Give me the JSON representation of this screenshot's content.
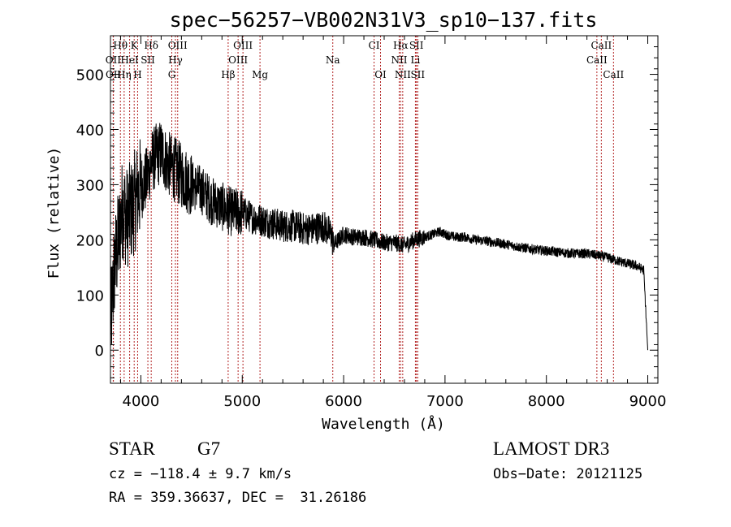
{
  "chart_data": {
    "type": "line",
    "title": "spec−56257−VB002N31V3_sp10−137.fits",
    "xlabel": "Wavelength (Å)",
    "ylabel": "Flux (relative)",
    "xlim": [
      3700,
      9100
    ],
    "ylim": [
      -60,
      570
    ],
    "x_ticks": [
      4000,
      5000,
      6000,
      7000,
      8000,
      9000
    ],
    "y_ticks": [
      0,
      100,
      200,
      300,
      400,
      500
    ],
    "spectrum_anchors": {
      "x": [
        3700,
        3740,
        3780,
        3820,
        3860,
        3900,
        3940,
        3980,
        4020,
        4060,
        4100,
        4140,
        4200,
        4260,
        4320,
        4380,
        4440,
        4500,
        4600,
        4700,
        4800,
        4900,
        5000,
        5100,
        5200,
        5300,
        5400,
        5500,
        5600,
        5700,
        5800,
        5880,
        5900,
        6000,
        6100,
        6200,
        6300,
        6400,
        6500,
        6560,
        6600,
        6700,
        6800,
        6880,
        6950,
        7000,
        7100,
        7200,
        7300,
        7400,
        7500,
        7600,
        7700,
        7800,
        7900,
        8000,
        8100,
        8200,
        8300,
        8400,
        8500,
        8600,
        8700,
        8800,
        8900,
        8960,
        9000
      ],
      "y": [
        40,
        150,
        200,
        260,
        240,
        250,
        270,
        290,
        300,
        310,
        340,
        350,
        360,
        340,
        330,
        320,
        310,
        300,
        290,
        270,
        260,
        250,
        250,
        240,
        235,
        230,
        225,
        225,
        220,
        220,
        225,
        210,
        190,
        210,
        205,
        205,
        200,
        195,
        195,
        192,
        190,
        200,
        205,
        210,
        215,
        210,
        205,
        205,
        200,
        198,
        195,
        192,
        188,
        185,
        182,
        180,
        178,
        176,
        175,
        175,
        172,
        168,
        162,
        157,
        152,
        145,
        0
      ]
    },
    "lines": [
      {
        "label": "Hθ",
        "x": 3798,
        "row": 0
      },
      {
        "label": "K",
        "x": 3934,
        "row": 0
      },
      {
        "label": "Hδ",
        "x": 4102,
        "row": 0
      },
      {
        "label": "OIII",
        "x": 4363,
        "row": 0
      },
      {
        "label": "OIII",
        "x": 5007,
        "row": 0
      },
      {
        "label": "CI",
        "x": 6300,
        "row": 0
      },
      {
        "label": "Hα",
        "x": 6563,
        "row": 0
      },
      {
        "label": "SII",
        "x": 6718,
        "row": 0
      },
      {
        "label": "CaII",
        "x": 8542,
        "row": 0
      },
      {
        "label": "OII",
        "x": 3727,
        "row": 1
      },
      {
        "label": "HeI",
        "x": 3889,
        "row": 1
      },
      {
        "label": "SII",
        "x": 4069,
        "row": 1
      },
      {
        "label": "Hγ",
        "x": 4341,
        "row": 1
      },
      {
        "label": "OIII",
        "x": 4959,
        "row": 1
      },
      {
        "label": "Na",
        "x": 5893,
        "row": 1
      },
      {
        "label": "NII",
        "x": 6548,
        "row": 1
      },
      {
        "label": "Li",
        "x": 6708,
        "row": 1
      },
      {
        "label": "CaII",
        "x": 8498,
        "row": 1
      },
      {
        "label": "OII",
        "x": 3729,
        "row": 2
      },
      {
        "label": "Hη",
        "x": 3835,
        "row": 2
      },
      {
        "label": "H",
        "x": 3968,
        "row": 2
      },
      {
        "label": "G",
        "x": 4305,
        "row": 2
      },
      {
        "label": "Hβ",
        "x": 4861,
        "row": 2
      },
      {
        "label": "Mg",
        "x": 5175,
        "row": 2
      },
      {
        "label": "OI",
        "x": 6364,
        "row": 2
      },
      {
        "label": "NII",
        "x": 6583,
        "row": 2
      },
      {
        "label": "SII",
        "x": 6731,
        "row": 2
      },
      {
        "label": "CaII",
        "x": 8662,
        "row": 2
      }
    ]
  },
  "info": {
    "object_class": "STAR",
    "subclass": "G7",
    "survey": "LAMOST DR3",
    "redshift": "cz = −118.4 ± 9.7 km/s",
    "obs_date": "Obs−Date: 20121125",
    "coords": "RA = 359.36637, DEC =  31.26186"
  },
  "colors": {
    "line_marker": "#b22222",
    "spectrum": "#000000"
  }
}
